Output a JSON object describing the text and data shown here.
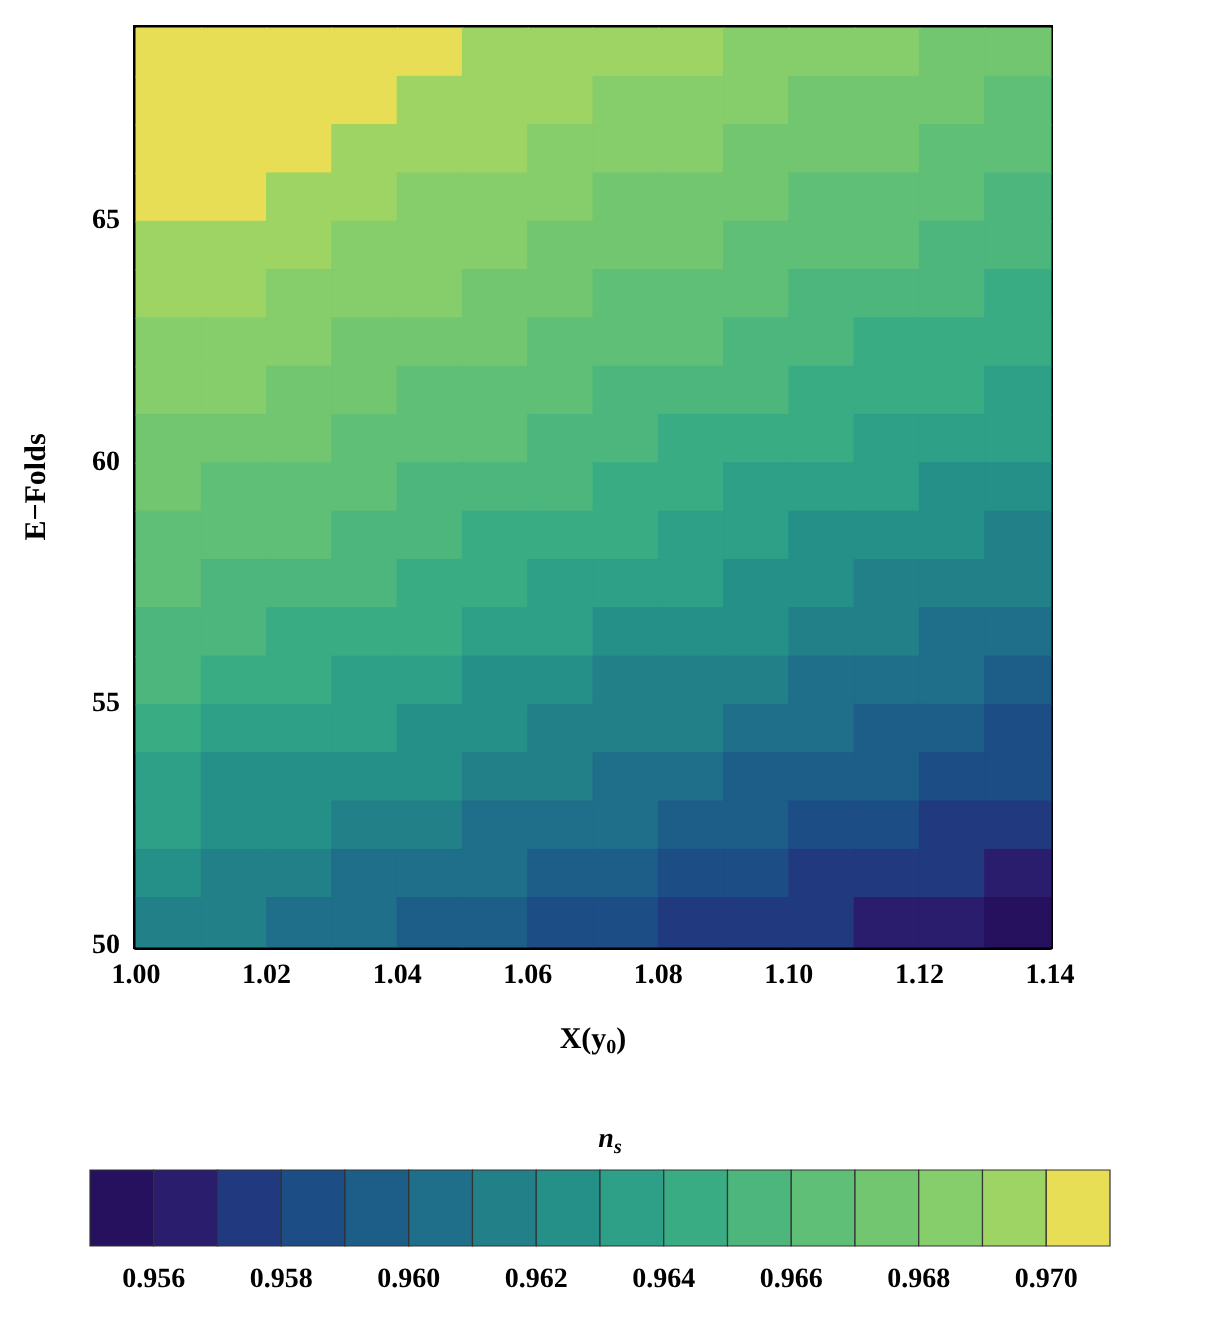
{
  "chart_data": {
    "type": "heatmap",
    "xlabel": "X(y$_{0}$)",
    "ylabel": "E−Folds",
    "clabel": "n$_{s}$",
    "xlim": [
      1,
      1.14
    ],
    "ylim": [
      50,
      69
    ],
    "xticks": [
      {
        "value": 1,
        "label": "1.00"
      },
      1.02,
      1.04,
      1.06,
      1.08,
      {
        "value": 1.1,
        "label": "1.10"
      },
      1.12,
      1.14
    ],
    "yticks": [
      50,
      55,
      60,
      65
    ],
    "clim": [
      0.955,
      0.971
    ],
    "cticks": [
      0.956,
      0.958,
      {
        "value": 0.96,
        "label": "0.960"
      },
      0.962,
      0.964,
      0.966,
      0.968,
      {
        "value": 0.97,
        "label": "0.970"
      }
    ],
    "colors": [
      "#25115e",
      "#2b1d6e",
      "#213a7f",
      "#1c4d85",
      "#1c5e88",
      "#1f6e8a",
      "#228088",
      "#259088",
      "#2da087",
      "#3aac84",
      "#4cb67d",
      "#5fbf76",
      "#72c66f",
      "#86cd6b",
      "#9dd464",
      "#e8de55"
    ],
    "cells": [
      [
        0.9705,
        0.9705,
        0.9705,
        0.9705,
        0.9705,
        0.9695,
        0.9695,
        0.9695,
        0.9695,
        0.9685,
        0.9685,
        0.9685,
        0.9675,
        0.9675
      ],
      [
        0.9705,
        0.9705,
        0.9705,
        0.9705,
        0.9695,
        0.9695,
        0.9695,
        0.9685,
        0.9685,
        0.9685,
        0.9675,
        0.9675,
        0.9675,
        0.9665
      ],
      [
        0.9705,
        0.9705,
        0.9705,
        0.9695,
        0.9695,
        0.9695,
        0.9685,
        0.9685,
        0.9685,
        0.9675,
        0.9675,
        0.9675,
        0.9665,
        0.9665
      ],
      [
        0.9705,
        0.9705,
        0.9695,
        0.9695,
        0.9685,
        0.9685,
        0.9685,
        0.9675,
        0.9675,
        0.9675,
        0.9665,
        0.9665,
        0.9665,
        0.9655
      ],
      [
        0.9695,
        0.9695,
        0.9695,
        0.9685,
        0.9685,
        0.9685,
        0.9675,
        0.9675,
        0.9675,
        0.9665,
        0.9665,
        0.9665,
        0.9655,
        0.9655
      ],
      [
        0.9695,
        0.9695,
        0.9685,
        0.9685,
        0.9685,
        0.9675,
        0.9675,
        0.9665,
        0.9665,
        0.9665,
        0.9655,
        0.9655,
        0.9655,
        0.9645
      ],
      [
        0.9685,
        0.9685,
        0.9685,
        0.9675,
        0.9675,
        0.9675,
        0.9665,
        0.9665,
        0.9665,
        0.9655,
        0.9655,
        0.9645,
        0.9645,
        0.9645
      ],
      [
        0.9685,
        0.9685,
        0.9675,
        0.9675,
        0.9665,
        0.9665,
        0.9665,
        0.9655,
        0.9655,
        0.9655,
        0.9645,
        0.9645,
        0.9645,
        0.9635
      ],
      [
        0.9675,
        0.9675,
        0.9675,
        0.9665,
        0.9665,
        0.9665,
        0.9655,
        0.9655,
        0.9645,
        0.9645,
        0.9645,
        0.9635,
        0.9635,
        0.9635
      ],
      [
        0.9675,
        0.9665,
        0.9665,
        0.9665,
        0.9655,
        0.9655,
        0.9655,
        0.9645,
        0.9645,
        0.9635,
        0.9635,
        0.9635,
        0.9625,
        0.9625
      ],
      [
        0.9665,
        0.9665,
        0.9665,
        0.9655,
        0.9655,
        0.9645,
        0.9645,
        0.9645,
        0.9635,
        0.9635,
        0.9625,
        0.9625,
        0.9625,
        0.9615
      ],
      [
        0.9665,
        0.9655,
        0.9655,
        0.9655,
        0.9645,
        0.9645,
        0.9635,
        0.9635,
        0.9635,
        0.9625,
        0.9625,
        0.9615,
        0.9615,
        0.9615
      ],
      [
        0.9655,
        0.9655,
        0.9645,
        0.9645,
        0.9645,
        0.9635,
        0.9635,
        0.9625,
        0.9625,
        0.9625,
        0.9615,
        0.9615,
        0.9605,
        0.9605
      ],
      [
        0.9655,
        0.9645,
        0.9645,
        0.9635,
        0.9635,
        0.9625,
        0.9625,
        0.9615,
        0.9615,
        0.9615,
        0.9605,
        0.9605,
        0.9605,
        0.9595
      ],
      [
        0.9645,
        0.9635,
        0.9635,
        0.9635,
        0.9625,
        0.9625,
        0.9615,
        0.9615,
        0.9615,
        0.9605,
        0.9605,
        0.9595,
        0.9595,
        0.9585
      ],
      [
        0.9635,
        0.9625,
        0.9625,
        0.9625,
        0.9625,
        0.9615,
        0.9615,
        0.9605,
        0.9605,
        0.9595,
        0.9595,
        0.9595,
        0.9585,
        0.9585
      ],
      [
        0.9635,
        0.9625,
        0.9625,
        0.9615,
        0.9615,
        0.9605,
        0.9605,
        0.9605,
        0.9595,
        0.9595,
        0.9585,
        0.9585,
        0.9575,
        0.9575
      ],
      [
        0.9625,
        0.9615,
        0.9615,
        0.9605,
        0.9605,
        0.9605,
        0.9595,
        0.9595,
        0.9585,
        0.9585,
        0.9575,
        0.9575,
        0.9575,
        0.9565
      ],
      [
        0.9615,
        0.9615,
        0.9605,
        0.9605,
        0.9595,
        0.9595,
        0.9585,
        0.9585,
        0.9575,
        0.9575,
        0.9575,
        0.9565,
        0.9565,
        0.9555
      ]
    ]
  }
}
